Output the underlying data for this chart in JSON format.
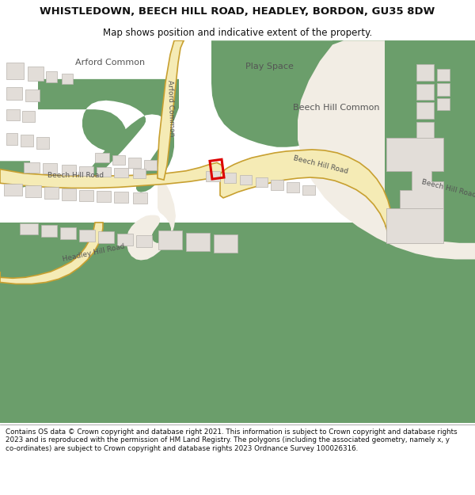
{
  "title": "WHISTLEDOWN, BEECH HILL ROAD, HEADLEY, BORDON, GU35 8DW",
  "subtitle": "Map shows position and indicative extent of the property.",
  "footer": "Contains OS data © Crown copyright and database right 2021. This information is subject to Crown copyright and database rights 2023 and is reproduced with the permission of HM Land Registry. The polygons (including the associated geometry, namely x, y co-ordinates) are subject to Crown copyright and database rights 2023 Ordnance Survey 100026316.",
  "bg_color": "#f2ede4",
  "green_color": "#6b9e6b",
  "road_fill": "#f5ebb5",
  "road_edge": "#c8a030",
  "building_fill": "#e2ddd8",
  "building_edge": "#b8b4ae",
  "plot_edge": "#dd0000",
  "label_color": "#555555",
  "title_color": "#111111",
  "title_fontsize": 9.5,
  "subtitle_fontsize": 8.5,
  "footer_fontsize": 6.3,
  "label_fontsize": 6.5,
  "area_label_fontsize": 8.0
}
